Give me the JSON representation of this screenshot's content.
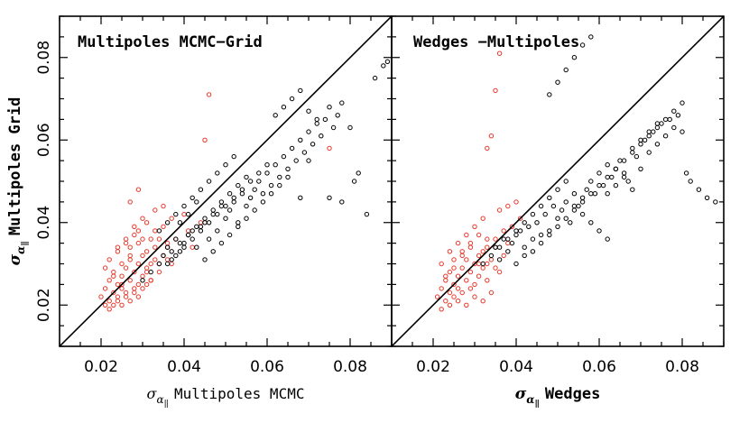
{
  "chart_data": [
    {
      "type": "scatter",
      "title": "Multipoles MCMC−Grid",
      "xlabel_symbol": "σ",
      "xlabel_sub": "α",
      "xlabel_subsub": "‖",
      "xlabel_text": "Multipoles MCMC",
      "ylabel_symbol": "σ",
      "ylabel_sub": "α",
      "ylabel_subsub": "‖",
      "ylabel_text": "Multipoles Grid",
      "xlim": [
        0.01,
        0.09
      ],
      "ylim": [
        0.01,
        0.09
      ],
      "xticks": [
        "0.02",
        "0.04",
        "0.06",
        "0.08"
      ],
      "yticks": [
        "0.02",
        "0.04",
        "0.06",
        "0.08"
      ],
      "reference_line": "y = x",
      "colors": {
        "black_points": "#000000",
        "red_points": "#e8382a"
      },
      "series": [
        {
          "color": "#e8382a",
          "x": [
            0.02,
            0.021,
            0.022,
            0.022,
            0.023,
            0.023,
            0.024,
            0.024,
            0.025,
            0.025,
            0.026,
            0.026,
            0.027,
            0.027,
            0.028,
            0.028,
            0.029,
            0.029,
            0.03,
            0.03,
            0.031,
            0.031,
            0.032,
            0.032,
            0.033,
            0.033,
            0.034,
            0.035,
            0.036,
            0.037,
            0.021,
            0.022,
            0.023,
            0.024,
            0.025,
            0.026,
            0.027,
            0.028,
            0.029,
            0.03,
            0.031,
            0.032,
            0.024,
            0.026,
            0.028,
            0.03,
            0.033,
            0.035,
            0.037,
            0.04,
            0.025,
            0.027,
            0.029,
            0.031,
            0.034,
            0.036,
            0.038,
            0.041,
            0.044,
            0.023,
            0.025,
            0.027,
            0.029,
            0.031,
            0.032,
            0.034,
            0.036,
            0.042,
            0.021,
            0.022,
            0.024,
            0.026,
            0.028,
            0.03,
            0.033,
            0.035,
            0.027,
            0.029,
            0.045,
            0.046,
            0.075
          ],
          "y": [
            0.022,
            0.024,
            0.021,
            0.026,
            0.023,
            0.028,
            0.025,
            0.022,
            0.027,
            0.024,
            0.029,
            0.023,
            0.026,
            0.031,
            0.024,
            0.028,
            0.03,
            0.025,
            0.027,
            0.032,
            0.029,
            0.033,
            0.026,
            0.03,
            0.031,
            0.034,
            0.028,
            0.032,
            0.035,
            0.03,
            0.02,
            0.019,
            0.02,
            0.021,
            0.02,
            0.022,
            0.021,
            0.023,
            0.022,
            0.024,
            0.025,
            0.026,
            0.033,
            0.035,
            0.037,
            0.036,
            0.038,
            0.039,
            0.041,
            0.042,
            0.03,
            0.034,
            0.038,
            0.04,
            0.036,
            0.034,
            0.036,
            0.038,
            0.04,
            0.027,
            0.025,
            0.032,
            0.035,
            0.028,
            0.036,
            0.03,
            0.031,
            0.034,
            0.029,
            0.031,
            0.034,
            0.036,
            0.039,
            0.041,
            0.043,
            0.044,
            0.045,
            0.048,
            0.06,
            0.071,
            0.058
          ]
        },
        {
          "color": "#000000",
          "x": [
            0.03,
            0.032,
            0.034,
            0.035,
            0.036,
            0.037,
            0.038,
            0.039,
            0.04,
            0.041,
            0.042,
            0.043,
            0.044,
            0.045,
            0.046,
            0.047,
            0.048,
            0.049,
            0.05,
            0.051,
            0.052,
            0.053,
            0.054,
            0.055,
            0.056,
            0.057,
            0.058,
            0.059,
            0.06,
            0.061,
            0.062,
            0.063,
            0.064,
            0.065,
            0.066,
            0.067,
            0.068,
            0.069,
            0.07,
            0.071,
            0.072,
            0.073,
            0.074,
            0.075,
            0.076,
            0.077,
            0.078,
            0.08,
            0.082,
            0.084,
            0.086,
            0.088,
            0.089,
            0.036,
            0.038,
            0.04,
            0.042,
            0.044,
            0.046,
            0.048,
            0.05,
            0.052,
            0.054,
            0.056,
            0.058,
            0.06,
            0.034,
            0.036,
            0.038,
            0.04,
            0.042,
            0.044,
            0.046,
            0.048,
            0.05,
            0.052,
            0.045,
            0.047,
            0.049,
            0.051,
            0.053,
            0.055,
            0.057,
            0.059,
            0.061,
            0.063,
            0.065,
            0.062,
            0.064,
            0.066,
            0.068,
            0.07,
            0.072,
            0.075,
            0.078,
            0.081,
            0.068,
            0.07,
            0.039,
            0.041,
            0.043,
            0.037,
            0.039,
            0.041,
            0.043,
            0.045,
            0.047,
            0.049,
            0.051,
            0.053,
            0.055
          ],
          "y": [
            0.026,
            0.028,
            0.03,
            0.032,
            0.034,
            0.031,
            0.036,
            0.033,
            0.035,
            0.037,
            0.038,
            0.034,
            0.039,
            0.04,
            0.036,
            0.042,
            0.038,
            0.044,
            0.041,
            0.043,
            0.045,
            0.04,
            0.047,
            0.044,
            0.046,
            0.048,
            0.05,
            0.047,
            0.052,
            0.049,
            0.054,
            0.051,
            0.056,
            0.053,
            0.058,
            0.055,
            0.06,
            0.057,
            0.062,
            0.059,
            0.064,
            0.061,
            0.065,
            0.068,
            0.063,
            0.066,
            0.069,
            0.063,
            0.052,
            0.042,
            0.075,
            0.078,
            0.079,
            0.03,
            0.032,
            0.034,
            0.036,
            0.038,
            0.04,
            0.042,
            0.044,
            0.046,
            0.048,
            0.05,
            0.052,
            0.054,
            0.038,
            0.04,
            0.042,
            0.044,
            0.046,
            0.048,
            0.05,
            0.052,
            0.054,
            0.056,
            0.031,
            0.033,
            0.035,
            0.037,
            0.039,
            0.041,
            0.043,
            0.045,
            0.047,
            0.049,
            0.051,
            0.066,
            0.068,
            0.07,
            0.072,
            0.067,
            0.065,
            0.046,
            0.045,
            0.05,
            0.046,
            0.055,
            0.04,
            0.042,
            0.045,
            0.033,
            0.035,
            0.037,
            0.039,
            0.041,
            0.043,
            0.045,
            0.047,
            0.049,
            0.051
          ]
        }
      ]
    },
    {
      "type": "scatter",
      "title": "Wedges −Multipoles",
      "xlabel_symbol": "σ",
      "xlabel_sub": "α",
      "xlabel_subsub": "‖",
      "xlabel_text": "Wedges",
      "xlim": [
        0.01,
        0.09
      ],
      "ylim": [
        0.01,
        0.09
      ],
      "xticks": [
        "0.02",
        "0.04",
        "0.06",
        "0.08"
      ],
      "reference_line": "y = x",
      "colors": {
        "black_points": "#000000",
        "red_points": "#e8382a"
      },
      "series": [
        {
          "color": "#e8382a",
          "x": [
            0.021,
            0.022,
            0.023,
            0.023,
            0.024,
            0.024,
            0.025,
            0.025,
            0.026,
            0.026,
            0.027,
            0.027,
            0.028,
            0.028,
            0.029,
            0.029,
            0.03,
            0.03,
            0.031,
            0.031,
            0.032,
            0.032,
            0.033,
            0.033,
            0.034,
            0.035,
            0.036,
            0.037,
            0.038,
            0.022,
            0.024,
            0.026,
            0.028,
            0.03,
            0.032,
            0.034,
            0.025,
            0.027,
            0.029,
            0.031,
            0.033,
            0.035,
            0.037,
            0.039,
            0.041,
            0.023,
            0.025,
            0.027,
            0.029,
            0.031,
            0.033,
            0.035,
            0.022,
            0.024,
            0.026,
            0.028,
            0.03,
            0.032,
            0.036,
            0.038,
            0.04,
            0.033,
            0.034,
            0.035,
            0.036
          ],
          "y": [
            0.022,
            0.024,
            0.021,
            0.026,
            0.023,
            0.028,
            0.025,
            0.022,
            0.027,
            0.024,
            0.029,
            0.023,
            0.026,
            0.031,
            0.024,
            0.028,
            0.03,
            0.025,
            0.027,
            0.032,
            0.029,
            0.033,
            0.026,
            0.03,
            0.031,
            0.034,
            0.028,
            0.032,
            0.035,
            0.019,
            0.02,
            0.021,
            0.02,
            0.022,
            0.021,
            0.023,
            0.031,
            0.033,
            0.035,
            0.037,
            0.034,
            0.036,
            0.038,
            0.039,
            0.041,
            0.027,
            0.029,
            0.032,
            0.034,
            0.03,
            0.036,
            0.029,
            0.03,
            0.033,
            0.035,
            0.037,
            0.039,
            0.041,
            0.043,
            0.044,
            0.045,
            0.058,
            0.061,
            0.072,
            0.081
          ]
        },
        {
          "color": "#000000",
          "x": [
            0.032,
            0.034,
            0.035,
            0.036,
            0.037,
            0.038,
            0.039,
            0.04,
            0.041,
            0.042,
            0.043,
            0.044,
            0.045,
            0.046,
            0.047,
            0.048,
            0.049,
            0.05,
            0.051,
            0.052,
            0.053,
            0.054,
            0.055,
            0.056,
            0.057,
            0.058,
            0.059,
            0.06,
            0.061,
            0.062,
            0.063,
            0.064,
            0.065,
            0.066,
            0.067,
            0.068,
            0.069,
            0.07,
            0.071,
            0.072,
            0.073,
            0.074,
            0.075,
            0.076,
            0.077,
            0.078,
            0.079,
            0.08,
            0.081,
            0.082,
            0.084,
            0.086,
            0.088,
            0.036,
            0.038,
            0.04,
            0.042,
            0.044,
            0.046,
            0.048,
            0.05,
            0.052,
            0.054,
            0.056,
            0.058,
            0.06,
            0.062,
            0.04,
            0.042,
            0.044,
            0.046,
            0.048,
            0.05,
            0.052,
            0.054,
            0.056,
            0.058,
            0.06,
            0.062,
            0.064,
            0.066,
            0.068,
            0.07,
            0.072,
            0.074,
            0.076,
            0.078,
            0.08,
            0.048,
            0.05,
            0.052,
            0.054,
            0.056,
            0.058,
            0.062,
            0.064,
            0.066,
            0.068,
            0.07,
            0.072,
            0.074
          ],
          "y": [
            0.03,
            0.032,
            0.034,
            0.031,
            0.036,
            0.033,
            0.035,
            0.037,
            0.038,
            0.034,
            0.039,
            0.036,
            0.04,
            0.037,
            0.042,
            0.038,
            0.044,
            0.041,
            0.043,
            0.045,
            0.04,
            0.047,
            0.044,
            0.046,
            0.048,
            0.05,
            0.047,
            0.052,
            0.049,
            0.054,
            0.051,
            0.053,
            0.055,
            0.052,
            0.05,
            0.048,
            0.056,
            0.053,
            0.06,
            0.057,
            0.062,
            0.059,
            0.064,
            0.061,
            0.065,
            0.063,
            0.066,
            0.062,
            0.052,
            0.05,
            0.048,
            0.046,
            0.045,
            0.034,
            0.036,
            0.038,
            0.04,
            0.042,
            0.044,
            0.046,
            0.048,
            0.05,
            0.044,
            0.042,
            0.04,
            0.038,
            0.036,
            0.03,
            0.032,
            0.033,
            0.035,
            0.037,
            0.039,
            0.041,
            0.043,
            0.045,
            0.047,
            0.049,
            0.051,
            0.053,
            0.055,
            0.057,
            0.059,
            0.061,
            0.063,
            0.065,
            0.067,
            0.069,
            0.071,
            0.074,
            0.077,
            0.08,
            0.083,
            0.085,
            0.047,
            0.049,
            0.051,
            0.058,
            0.06,
            0.062,
            0.064
          ]
        }
      ]
    }
  ]
}
